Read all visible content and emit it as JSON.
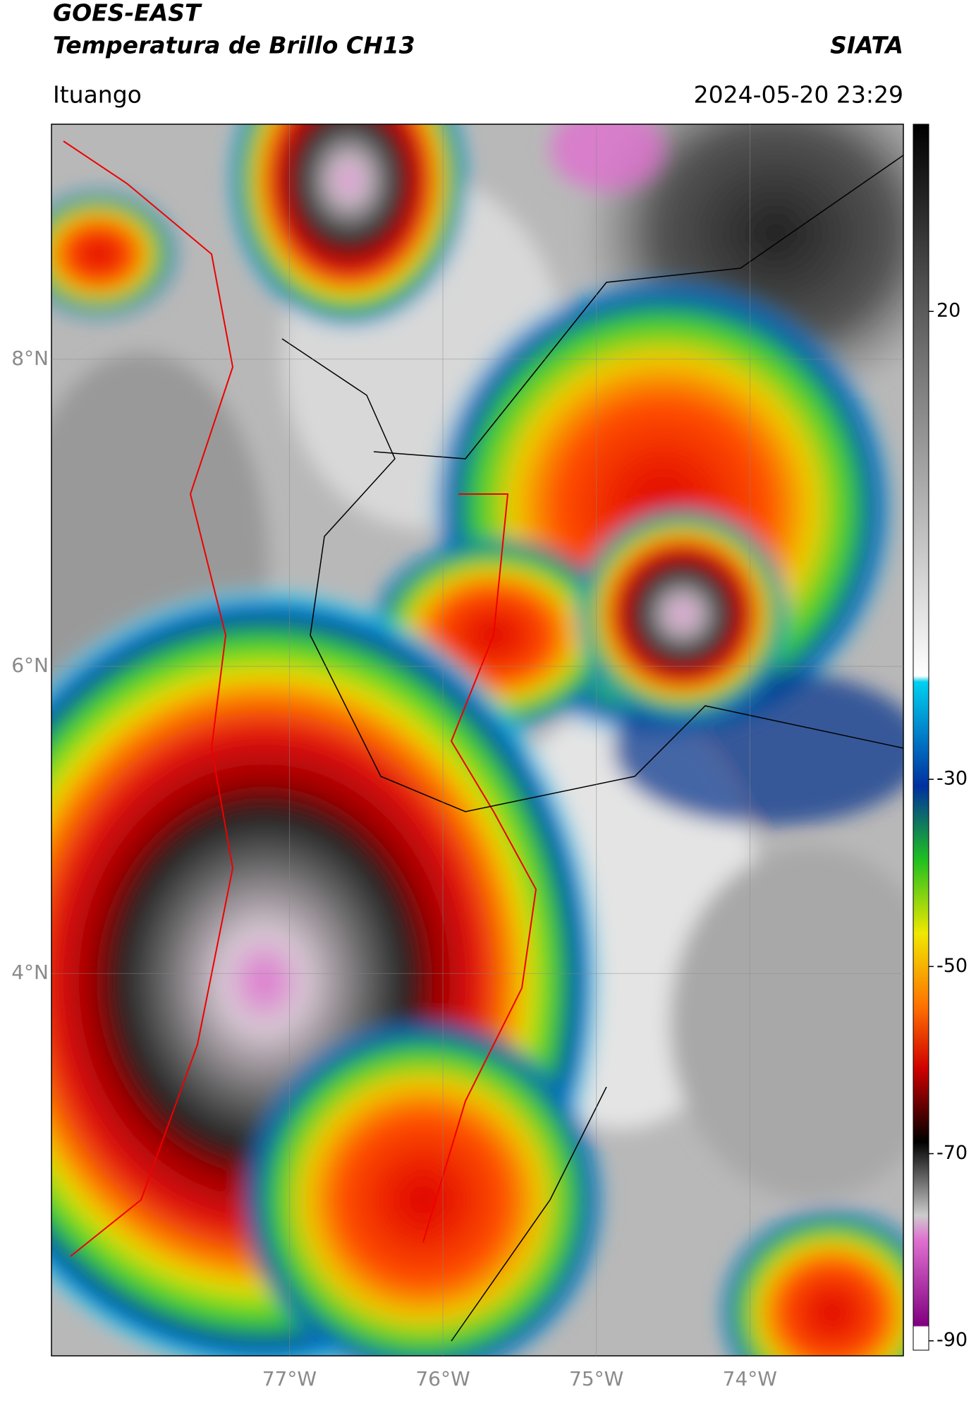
{
  "header": {
    "title": "GOES-EAST",
    "subtitle": "Temperatura de Brillo CH13",
    "brand": "SIATA",
    "location": "Ituango",
    "timestamp": "2024-05-20 23:29"
  },
  "map": {
    "xlim": [
      -78.55,
      -73.0
    ],
    "ylim": [
      1.51,
      9.53
    ],
    "xticks": [
      {
        "value": -77,
        "label": "77°W"
      },
      {
        "value": -76,
        "label": "76°W"
      },
      {
        "value": -75,
        "label": "75°W"
      },
      {
        "value": -74,
        "label": "74°W"
      }
    ],
    "yticks": [
      {
        "value": 8,
        "label": "8°N"
      },
      {
        "value": 6,
        "label": "6°N"
      },
      {
        "value": 4,
        "label": "4°N"
      }
    ],
    "grid": true
  },
  "colorbar": {
    "lim": [
      -91,
      40
    ],
    "ticks": [
      20,
      -30,
      -50,
      -70,
      -90
    ]
  }
}
